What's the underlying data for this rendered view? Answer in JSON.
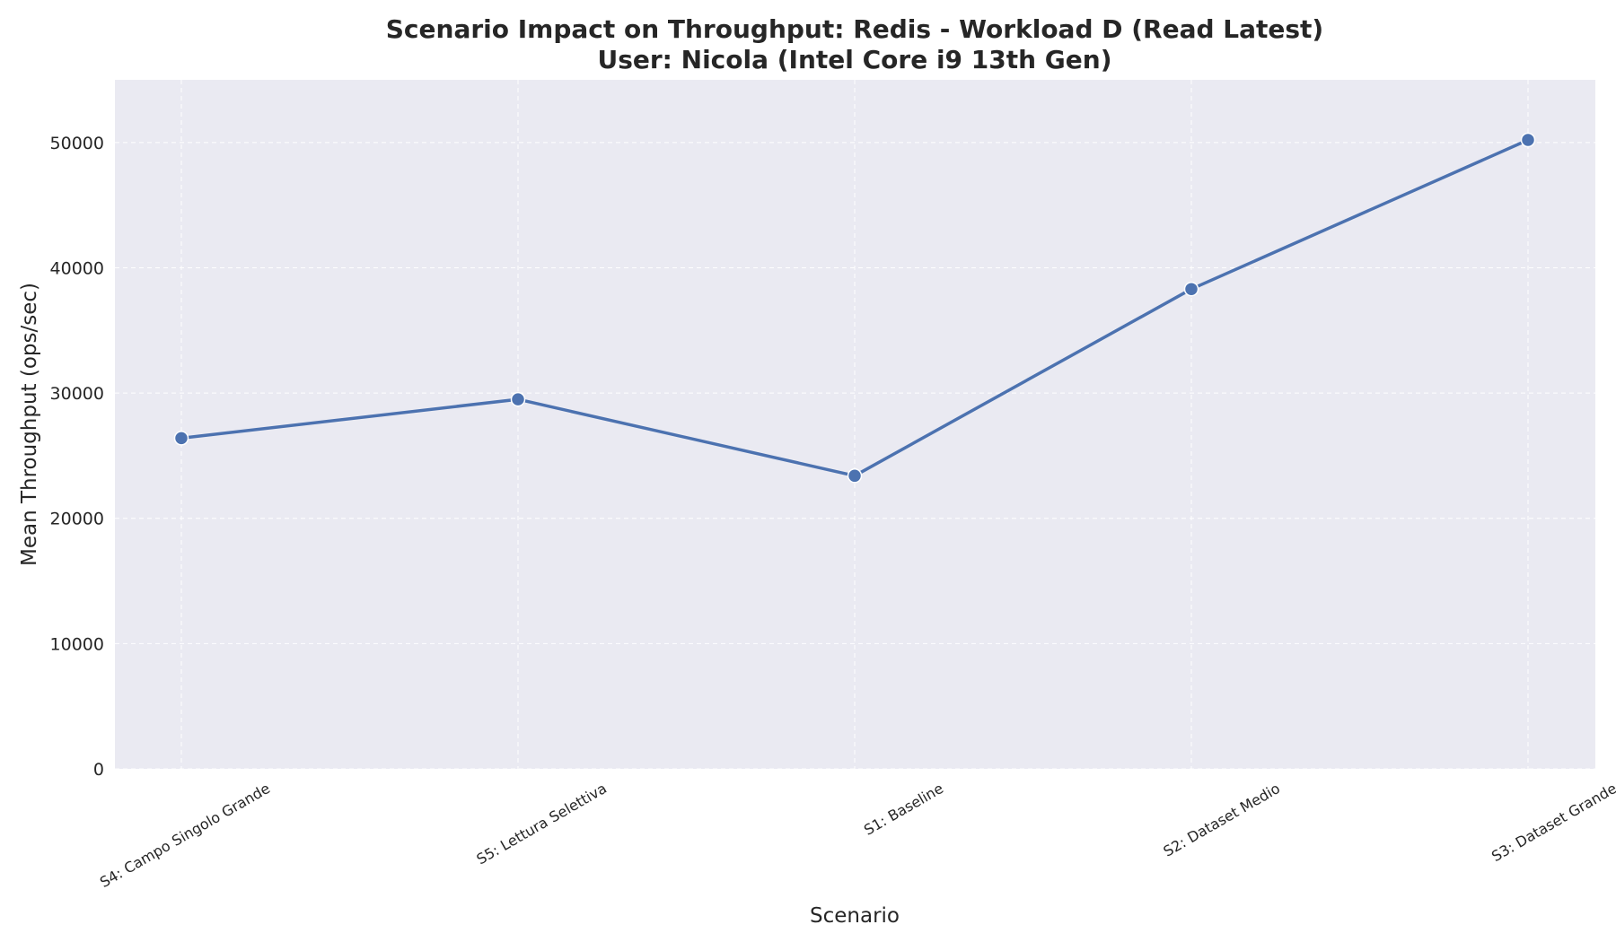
{
  "chart_data": {
    "type": "line",
    "title": "Scenario Impact on Throughput: Redis - Workload D (Read Latest)",
    "subtitle": "User: Nicola (Intel Core i9 13th Gen)",
    "xlabel": "Scenario",
    "ylabel": "Mean Throughput (ops/sec)",
    "categories": [
      "S4: Campo Singolo Grande",
      "S5: Lettura Selettiva",
      "S1: Baseline",
      "S2: Dataset Medio",
      "S3: Dataset Grande"
    ],
    "values": [
      26400,
      29500,
      23400,
      38300,
      50200
    ],
    "ylim": [
      0,
      55000
    ],
    "yticks": [
      0,
      10000,
      20000,
      30000,
      40000,
      50000
    ],
    "grid": true,
    "legend": "none",
    "colors": {
      "line": "#4c72b0",
      "plot_background": "#eaeaf2",
      "grid": "#ffffff",
      "marker_edge": "#ffffff"
    }
  }
}
